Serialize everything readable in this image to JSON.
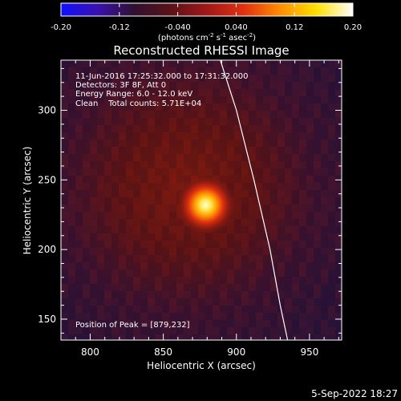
{
  "colorbar": {
    "ticks": [
      "-0.20",
      "-0.12",
      "-0.040",
      "0.040",
      "0.12",
      "0.20"
    ],
    "tick_values": [
      -0.2,
      -0.12,
      -0.04,
      0.04,
      0.12,
      0.2
    ],
    "range": [
      -0.2,
      0.2
    ],
    "unit_main": "(photons cm",
    "unit_exp1": "-2",
    "unit_mid1": " s",
    "unit_exp2": "-1",
    "unit_mid2": " asec",
    "unit_exp3": "-2",
    "unit_end": ")",
    "colors": [
      "#1010ff",
      "#3a10b0",
      "#301030",
      "#5a1218",
      "#a01818",
      "#e03010",
      "#ff8c00",
      "#ffe000",
      "#ffffff"
    ]
  },
  "chart_data": {
    "type": "heatmap",
    "title": "Reconstructed RHESSI Image",
    "xlabel": "Heliocentric X (arcsec)",
    "ylabel": "Heliocentric Y (arcsec)",
    "xlim": [
      780,
      972
    ],
    "ylim": [
      135,
      336
    ],
    "xticks": [
      800,
      850,
      900,
      950
    ],
    "yticks": [
      150,
      200,
      250,
      300
    ],
    "peak": {
      "x": 879,
      "y": 232
    },
    "limb_curve": [
      [
        889,
        336
      ],
      [
        900,
        300
      ],
      [
        912,
        250
      ],
      [
        923,
        200
      ],
      [
        930,
        160
      ],
      [
        935,
        135
      ]
    ],
    "annotations": [
      "11-Jun-2016 17:25:32.000 to 17:31:32.000",
      "Detectors: 3F 8F, Att 0",
      "Energy Range: 6.0 - 12.0 keV",
      "Clean    Total counts: 5.71E+04"
    ],
    "peak_label": "Position of Peak = [879,232]"
  },
  "footer": {
    "timestamp": "5-Sep-2022 18:27"
  }
}
